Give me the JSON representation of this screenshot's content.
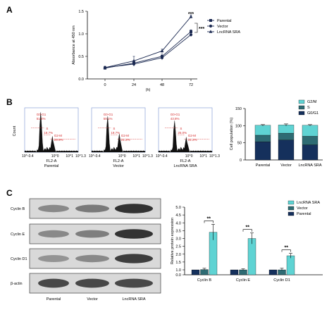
{
  "panelA": {
    "letter": "A",
    "ylabel": "Absorbance at 450 nm",
    "xlabel": "(h)",
    "sig_top": "***",
    "sig_side": "***",
    "colors": {
      "parental": "#1c2a52",
      "vector": "#1c2a52",
      "lncrna": "#1c2a52"
    },
    "chart_data": {
      "type": "line",
      "x": [
        0,
        24,
        48,
        72
      ],
      "xticks": [
        "0",
        "24",
        "48",
        "72"
      ],
      "yticks": [
        "0.0",
        "0.5",
        "1.0",
        "1.5"
      ],
      "ylim": [
        0,
        1.5
      ],
      "legend_position": "top-right",
      "series": [
        {
          "name": "Parental",
          "values": [
            0.24,
            0.35,
            0.5,
            1.05
          ],
          "err": [
            0.03,
            0.06,
            0.05,
            0.04
          ],
          "marker": "square"
        },
        {
          "name": "Vector",
          "values": [
            0.25,
            0.33,
            0.47,
            0.98
          ],
          "err": [
            0.03,
            0.05,
            0.05,
            0.04
          ],
          "marker": "circle"
        },
        {
          "name": "LncRNA SRA",
          "values": [
            0.25,
            0.4,
            0.62,
            1.38
          ],
          "err": [
            0.03,
            0.1,
            0.04,
            0.04
          ],
          "marker": "triangle"
        }
      ]
    }
  },
  "panelB": {
    "letter": "B",
    "flow": {
      "ylabel": "Count",
      "xlabel": "FL2-A",
      "gates": {
        "g0g1": "G0-G1",
        "s": "S",
        "g2m": "G2-M"
      },
      "xticks": [
        "10^-0.4",
        "10^0",
        "10^1",
        "10^1.3"
      ],
      "panels": [
        {
          "name": "Parental",
          "g0g1": "51.4%",
          "s": "18.7%",
          "g2m": "29.9%"
        },
        {
          "name": "Vector",
          "g0g1": "59.1%",
          "s": "19.7%",
          "g2m": "21.2%"
        },
        {
          "name": "LncRNA SRA",
          "g0g1": "43.8%",
          "s": "25.0%",
          "g2m": "31.2%"
        }
      ]
    },
    "stack": {
      "ylabel": "Cell population (%)",
      "colors": {
        "g0g1": "#15305c",
        "s": "#2e6b73",
        "g2m": "#5fd3d3"
      },
      "chart_data": {
        "type": "bar",
        "stacked": true,
        "categories": [
          "Parental",
          "Vector",
          "LncRNA SRA"
        ],
        "yticks": [
          "0",
          "50",
          "100",
          "150"
        ],
        "ylim": [
          0,
          150
        ],
        "legend_position": "top-right",
        "series": [
          {
            "name": "G0/G1",
            "values": [
              53,
              58,
              44
            ]
          },
          {
            "name": "S",
            "values": [
              19,
              20,
              25
            ]
          },
          {
            "name": "G2/M",
            "values": [
              29,
              24,
              32
            ]
          }
        ],
        "err": [
          2,
          3,
          2
        ]
      }
    }
  },
  "panelC": {
    "letter": "C",
    "blot": {
      "rows": [
        "Cyclin B",
        "Cyclin E",
        "Cyclin D1",
        "β-actin"
      ],
      "lanes": [
        "Parental",
        "Vector",
        "LncRNA SRA"
      ],
      "intensity": [
        [
          0.55,
          0.62,
          0.95
        ],
        [
          0.55,
          0.6,
          0.95
        ],
        [
          0.5,
          0.55,
          0.9
        ],
        [
          0.85,
          0.85,
          0.85
        ]
      ]
    },
    "bars": {
      "ylabel": "Relative protein expression",
      "sig": "**",
      "colors": {
        "lncrna": "#5fd3d3",
        "vector": "#2e6b73",
        "parental": "#15305c"
      },
      "chart_data": {
        "type": "bar",
        "categories": [
          "Cyclin B",
          "Cyclin E",
          "Cyclin D1"
        ],
        "yticks": [
          "0.0",
          "1.0",
          "1.5",
          "2.0",
          "2.5",
          "3.0",
          "3.5",
          "4.0",
          "4.5",
          "5.0"
        ],
        "ylim": [
          0,
          5
        ],
        "legend_position": "top-right",
        "series": [
          {
            "name": "Parental",
            "values": [
              1.0,
              1.0,
              1.0
            ],
            "err": [
              0,
              0,
              0
            ]
          },
          {
            "name": "Vector",
            "values": [
              1.02,
              1.0,
              1.0
            ],
            "err": [
              0.08,
              0.06,
              0.1
            ]
          },
          {
            "name": "LncRNA SRA",
            "values": [
              3.4,
              3.0,
              1.9
            ],
            "err": [
              0.5,
              0.35,
              0.15
            ]
          }
        ]
      }
    }
  }
}
